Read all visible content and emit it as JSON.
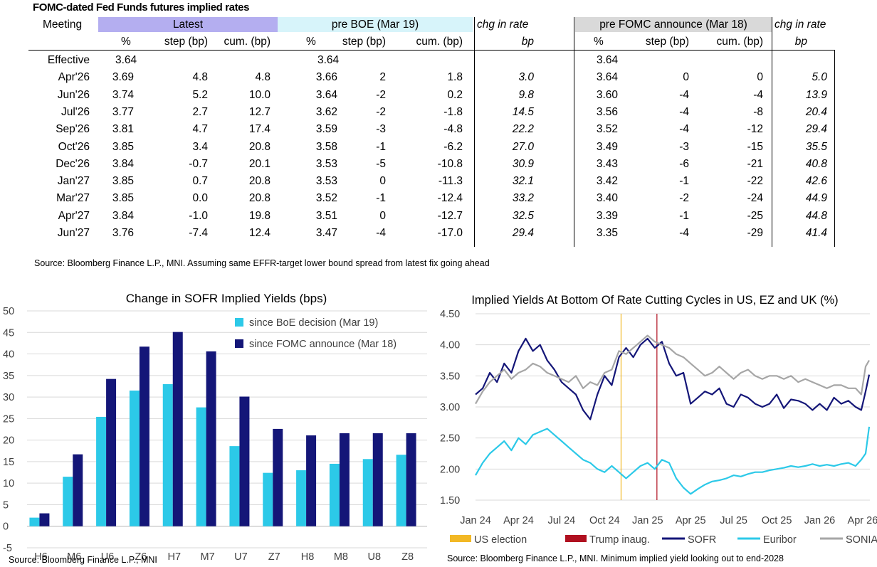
{
  "table": {
    "title": "FOMC-dated Fed Funds futures implied rates",
    "meeting_header": "Meeting",
    "groups": [
      {
        "label": "Latest",
        "color": "#b4aef0"
      },
      {
        "label": "pre BOE (Mar 19)",
        "color": "#d7f4fa"
      },
      {
        "label": "chg in rate"
      },
      {
        "label": "pre FOMC announce (Mar 18)",
        "color": "#d9d9d9"
      },
      {
        "label": "chg in rate"
      }
    ],
    "subheaders": [
      "%",
      "step (bp)",
      "cum. (bp)",
      "%",
      "step (bp)",
      "cum. (bp)",
      "bp",
      "%",
      "step (bp)",
      "cum. (bp)",
      "bp"
    ],
    "rows": [
      [
        "Effective",
        "3.64",
        "",
        "",
        "3.64",
        "",
        "",
        "",
        "3.64",
        "",
        "",
        ""
      ],
      [
        "Apr'26",
        "3.69",
        "4.8",
        "4.8",
        "3.66",
        "2",
        "1.8",
        "3.0",
        "3.64",
        "0",
        "0",
        "5.0"
      ],
      [
        "Jun'26",
        "3.74",
        "5.2",
        "10.0",
        "3.64",
        "-2",
        "0.2",
        "9.8",
        "3.60",
        "-4",
        "-4",
        "13.9"
      ],
      [
        "Jul'26",
        "3.77",
        "2.7",
        "12.7",
        "3.62",
        "-2",
        "-1.8",
        "14.5",
        "3.56",
        "-4",
        "-8",
        "20.4"
      ],
      [
        "Sep'26",
        "3.81",
        "4.7",
        "17.4",
        "3.59",
        "-3",
        "-4.8",
        "22.2",
        "3.52",
        "-4",
        "-12",
        "29.4"
      ],
      [
        "Oct'26",
        "3.85",
        "3.4",
        "20.8",
        "3.58",
        "-1",
        "-6.2",
        "27.0",
        "3.49",
        "-3",
        "-15",
        "35.5"
      ],
      [
        "Dec'26",
        "3.84",
        "-0.7",
        "20.1",
        "3.53",
        "-5",
        "-10.8",
        "30.9",
        "3.43",
        "-6",
        "-21",
        "40.8"
      ],
      [
        "Jan'27",
        "3.85",
        "0.7",
        "20.8",
        "3.53",
        "0",
        "-11.3",
        "32.1",
        "3.42",
        "-1",
        "-22",
        "42.6"
      ],
      [
        "Mar'27",
        "3.85",
        "0.0",
        "20.8",
        "3.52",
        "-1",
        "-12.4",
        "33.2",
        "3.40",
        "-2",
        "-24",
        "44.9"
      ],
      [
        "Apr'27",
        "3.84",
        "-1.0",
        "19.8",
        "3.51",
        "0",
        "-12.7",
        "32.5",
        "3.39",
        "-1",
        "-25",
        "44.8"
      ],
      [
        "Jun'27",
        "3.76",
        "-7.4",
        "12.4",
        "3.47",
        "-4",
        "-17.0",
        "29.4",
        "3.35",
        "-4",
        "-29",
        "41.4"
      ]
    ],
    "source": "Source: Bloomberg Finance L.P., MNI. Assuming same  EFFR-target lower bound spread from latest fix going ahead"
  },
  "chart_data": [
    {
      "type": "bar",
      "title": "Change in SOFR Implied Yields (bps)",
      "categories": [
        "H6",
        "M6",
        "U6",
        "Z6",
        "H7",
        "M7",
        "U7",
        "Z7",
        "H8",
        "M8",
        "U8",
        "Z8"
      ],
      "series": [
        {
          "name": "since BoE decision (Mar 19)",
          "color": "#2cc9e8",
          "values": [
            2.0,
            11.5,
            25.4,
            31.5,
            33.0,
            27.6,
            18.6,
            12.4,
            13.0,
            14.5,
            15.6,
            16.6
          ]
        },
        {
          "name": "since FOMC announce (Mar 18)",
          "color": "#141678",
          "values": [
            3.0,
            16.7,
            34.2,
            41.7,
            45.1,
            40.6,
            30.1,
            22.6,
            21.1,
            21.6,
            21.6,
            21.6
          ]
        }
      ],
      "ylim": [
        -5,
        50
      ],
      "yticks": [
        "-5",
        "0",
        "5",
        "10",
        "15",
        "20",
        "25",
        "30",
        "35",
        "40",
        "45",
        "50"
      ],
      "xlabel": "",
      "ylabel": "",
      "source": "Source: Bloomberg Finance L.P., MNI"
    },
    {
      "type": "line",
      "title": "Implied Yields At Bottom Of Rate Cutting Cycles in US, EZ and UK (%)",
      "x_range": [
        "Jan 24",
        "Apr 26"
      ],
      "xticks": [
        "Jan 24",
        "Apr 24",
        "Jul 24",
        "Oct 24",
        "Jan 25",
        "Apr 25",
        "Jul 25",
        "Oct 25",
        "Jan 26",
        "Apr 26"
      ],
      "ylim": [
        1.5,
        4.5
      ],
      "yticks": [
        "1.50",
        "2.00",
        "2.50",
        "3.00",
        "3.50",
        "4.00",
        "4.50"
      ],
      "events": [
        {
          "name": "US election",
          "x": 10.15,
          "color": "#f2b825"
        },
        {
          "name": "Trump inaug.",
          "x": 12.65,
          "color": "#b01020"
        }
      ],
      "series": [
        {
          "name": "SOFR",
          "color": "#141678",
          "x": [
            0,
            0.5,
            1,
            1.5,
            2,
            2.5,
            3,
            3.5,
            4,
            4.5,
            5,
            5.5,
            6,
            6.5,
            7,
            7.5,
            8,
            8.5,
            9,
            9.5,
            10,
            10.5,
            11,
            11.5,
            12,
            12.5,
            13,
            13.5,
            14,
            14.5,
            15,
            15.5,
            16,
            16.5,
            17,
            17.5,
            18,
            18.5,
            19,
            19.5,
            20,
            20.5,
            21,
            21.5,
            22,
            22.5,
            23,
            23.5,
            24,
            24.5,
            25,
            25.5,
            26,
            26.5,
            26.9,
            27.2,
            27.6
          ],
          "y": [
            3.2,
            3.3,
            3.55,
            3.4,
            3.7,
            3.55,
            3.9,
            4.1,
            3.9,
            4.0,
            3.75,
            3.6,
            3.4,
            3.3,
            3.2,
            2.95,
            2.8,
            3.2,
            3.5,
            3.35,
            3.8,
            3.95,
            3.8,
            4.0,
            4.1,
            3.95,
            4.05,
            3.7,
            3.5,
            3.55,
            3.05,
            3.15,
            3.25,
            3.2,
            3.3,
            3.05,
            3.0,
            3.2,
            3.15,
            3.05,
            3.0,
            3.05,
            3.2,
            2.98,
            3.12,
            3.1,
            3.05,
            2.95,
            3.05,
            2.95,
            3.15,
            3.05,
            3.1,
            3.0,
            2.95,
            3.25,
            3.52
          ]
        },
        {
          "name": "Euribor",
          "color": "#2cc9e8",
          "x": [
            0,
            0.5,
            1,
            1.5,
            2,
            2.5,
            3,
            3.5,
            4,
            4.5,
            5,
            5.5,
            6,
            6.5,
            7,
            7.5,
            8,
            8.5,
            9,
            9.5,
            10,
            10.5,
            11,
            11.5,
            12,
            12.5,
            13,
            13.5,
            14,
            14.5,
            15,
            15.5,
            16,
            16.5,
            17,
            17.5,
            18,
            18.5,
            19,
            19.5,
            20,
            20.5,
            21,
            21.5,
            22,
            22.5,
            23,
            23.5,
            24,
            24.5,
            25,
            25.5,
            26,
            26.5,
            26.9,
            27.2,
            27.6
          ],
          "y": [
            1.9,
            2.1,
            2.25,
            2.35,
            2.45,
            2.3,
            2.5,
            2.4,
            2.55,
            2.6,
            2.65,
            2.55,
            2.45,
            2.35,
            2.25,
            2.15,
            2.1,
            2.0,
            1.95,
            2.05,
            1.95,
            1.85,
            1.95,
            2.05,
            2.1,
            2.0,
            2.15,
            2.1,
            1.85,
            1.7,
            1.6,
            1.68,
            1.75,
            1.8,
            1.82,
            1.85,
            1.9,
            1.88,
            1.92,
            1.95,
            1.95,
            1.98,
            2.0,
            2.02,
            2.05,
            2.03,
            2.05,
            2.08,
            2.05,
            2.07,
            2.05,
            2.08,
            2.1,
            2.05,
            2.15,
            2.25,
            2.68
          ]
        },
        {
          "name": "SONIA",
          "color": "#a6a6a6",
          "x": [
            0,
            0.5,
            1,
            1.5,
            2,
            2.5,
            3,
            3.5,
            4,
            4.5,
            5,
            5.5,
            6,
            6.5,
            7,
            7.5,
            8,
            8.5,
            9,
            9.5,
            10,
            10.5,
            11,
            11.5,
            12,
            12.5,
            13,
            13.5,
            14,
            14.5,
            15,
            15.5,
            16,
            16.5,
            17,
            17.5,
            18,
            18.5,
            19,
            19.5,
            20,
            20.5,
            21,
            21.5,
            22,
            22.5,
            23,
            23.5,
            24,
            24.5,
            25,
            25.5,
            26,
            26.5,
            26.9,
            27.2,
            27.6
          ],
          "y": [
            3.05,
            3.25,
            3.4,
            3.5,
            3.6,
            3.45,
            3.55,
            3.6,
            3.7,
            3.65,
            3.55,
            3.5,
            3.45,
            3.4,
            3.5,
            3.3,
            3.4,
            3.35,
            3.55,
            3.6,
            3.9,
            3.85,
            3.95,
            4.05,
            4.15,
            4.05,
            4.0,
            3.95,
            3.85,
            3.8,
            3.7,
            3.6,
            3.5,
            3.55,
            3.65,
            3.55,
            3.45,
            3.55,
            3.6,
            3.5,
            3.45,
            3.5,
            3.5,
            3.45,
            3.5,
            3.4,
            3.45,
            3.4,
            3.35,
            3.3,
            3.35,
            3.35,
            3.3,
            3.3,
            3.2,
            3.65,
            3.75
          ]
        }
      ],
      "source": "Source: Bloomberg Finance L.P., MNI. Minimum implied yield looking out to end-2028"
    }
  ]
}
